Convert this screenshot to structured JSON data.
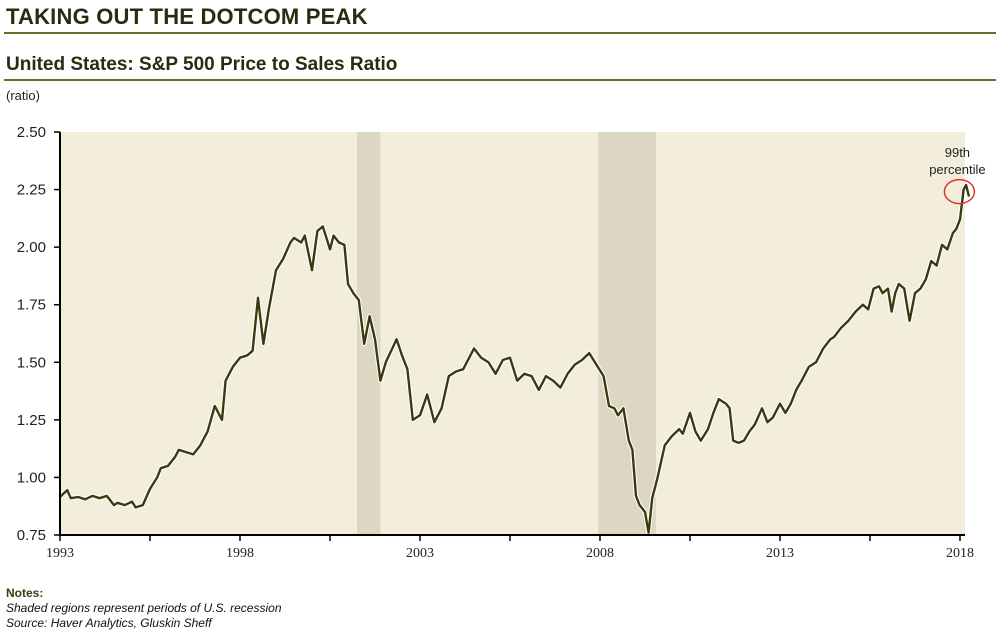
{
  "header": {
    "title": "TAKING OUT THE DOTCOM PEAK",
    "chart_title": "United States: S&P 500 Price to Sales Ratio",
    "unit_label": "(ratio)"
  },
  "notes": {
    "heading": "Notes:",
    "line1": "Shaded regions represent periods of U.S. recession",
    "line2": "Source: Haver Analytics, Gluskin Sheff"
  },
  "colors": {
    "plot_bg": "#f3eedb",
    "recession": "#dcd6c2",
    "line": "#3a3a0c",
    "annotation_circle": "#e03030"
  },
  "chart_data": {
    "type": "line",
    "title": "United States: S&P 500 Price to Sales Ratio",
    "xlabel": "",
    "ylabel": "(ratio)",
    "xlim": [
      1993,
      2018.3
    ],
    "ylim": [
      0.75,
      2.5
    ],
    "grid": false,
    "x_ticks": [
      "1993",
      "1998",
      "2003",
      "2008",
      "2013",
      "2018"
    ],
    "x_tick_values": [
      1993,
      1998,
      2003,
      2008,
      2013,
      2018
    ],
    "x_minor_ticks": [
      1995.5,
      2000.5,
      2005.5,
      2010.5,
      2015.5
    ],
    "y_ticks": [
      "0.75",
      "1.00",
      "1.25",
      "1.50",
      "1.75",
      "2.00",
      "2.25",
      "2.50"
    ],
    "y_tick_values": [
      0.75,
      1.0,
      1.25,
      1.5,
      1.75,
      2.0,
      2.25,
      2.5
    ],
    "recessions": [
      [
        2001.25,
        2001.9
      ],
      [
        2007.95,
        2009.55
      ]
    ],
    "annotation": {
      "text_line1": "99th",
      "text_line2": "percentile",
      "x": 2018.15,
      "y": 2.25
    },
    "series": [
      {
        "name": "S&P 500 Price to Sales Ratio",
        "x": [
          1993.0,
          1993.1,
          1993.2,
          1993.3,
          1993.5,
          1993.7,
          1993.9,
          1994.1,
          1994.3,
          1994.5,
          1994.6,
          1994.8,
          1995.0,
          1995.1,
          1995.3,
          1995.5,
          1995.7,
          1995.8,
          1996.0,
          1996.2,
          1996.3,
          1996.5,
          1996.7,
          1996.9,
          1997.1,
          1997.3,
          1997.5,
          1997.6,
          1997.8,
          1998.0,
          1998.2,
          1998.35,
          1998.5,
          1998.65,
          1998.8,
          1999.0,
          1999.2,
          1999.4,
          1999.5,
          1999.7,
          1999.8,
          2000.0,
          2000.15,
          2000.3,
          2000.5,
          2000.6,
          2000.75,
          2000.9,
          2001.0,
          2001.15,
          2001.3,
          2001.45,
          2001.6,
          2001.75,
          2001.9,
          2002.05,
          2002.2,
          2002.35,
          2002.5,
          2002.65,
          2002.8,
          2003.0,
          2003.2,
          2003.4,
          2003.6,
          2003.8,
          2004.0,
          2004.2,
          2004.5,
          2004.7,
          2004.9,
          2005.1,
          2005.3,
          2005.5,
          2005.7,
          2005.9,
          2006.1,
          2006.3,
          2006.5,
          2006.7,
          2006.9,
          2007.1,
          2007.3,
          2007.5,
          2007.7,
          2007.9,
          2008.1,
          2008.25,
          2008.4,
          2008.5,
          2008.65,
          2008.8,
          2008.9,
          2009.0,
          2009.1,
          2009.25,
          2009.35,
          2009.45,
          2009.6,
          2009.8,
          2010.0,
          2010.2,
          2010.3,
          2010.5,
          2010.65,
          2010.8,
          2011.0,
          2011.15,
          2011.3,
          2011.5,
          2011.6,
          2011.7,
          2011.85,
          2012.0,
          2012.15,
          2012.3,
          2012.5,
          2012.65,
          2012.8,
          2013.0,
          2013.15,
          2013.3,
          2013.45,
          2013.6,
          2013.8,
          2014.0,
          2014.2,
          2014.4,
          2014.5,
          2014.7,
          2014.9,
          2015.1,
          2015.3,
          2015.45,
          2015.6,
          2015.75,
          2015.85,
          2016.0,
          2016.1,
          2016.2,
          2016.3,
          2016.45,
          2016.6,
          2016.75,
          2016.9,
          2017.05,
          2017.2,
          2017.35,
          2017.5,
          2017.65,
          2017.8,
          2017.9,
          2018.0,
          2018.1,
          2018.17,
          2018.25
        ],
        "values": [
          0.915,
          0.93,
          0.945,
          0.91,
          0.915,
          0.905,
          0.92,
          0.91,
          0.92,
          0.88,
          0.89,
          0.88,
          0.895,
          0.87,
          0.88,
          0.95,
          1.0,
          1.04,
          1.05,
          1.09,
          1.12,
          1.11,
          1.1,
          1.14,
          1.2,
          1.31,
          1.25,
          1.42,
          1.48,
          1.52,
          1.53,
          1.55,
          1.78,
          1.58,
          1.73,
          1.9,
          1.95,
          2.02,
          2.04,
          2.02,
          2.05,
          1.9,
          2.07,
          2.09,
          1.99,
          2.05,
          2.02,
          2.01,
          1.84,
          1.8,
          1.77,
          1.58,
          1.7,
          1.6,
          1.42,
          1.5,
          1.55,
          1.6,
          1.53,
          1.47,
          1.25,
          1.27,
          1.36,
          1.24,
          1.3,
          1.44,
          1.46,
          1.47,
          1.56,
          1.52,
          1.5,
          1.45,
          1.51,
          1.52,
          1.42,
          1.45,
          1.44,
          1.38,
          1.44,
          1.42,
          1.39,
          1.45,
          1.49,
          1.51,
          1.54,
          1.49,
          1.44,
          1.31,
          1.3,
          1.27,
          1.3,
          1.16,
          1.12,
          0.92,
          0.88,
          0.85,
          0.76,
          0.91,
          1.0,
          1.14,
          1.18,
          1.21,
          1.19,
          1.28,
          1.2,
          1.16,
          1.21,
          1.28,
          1.34,
          1.32,
          1.3,
          1.16,
          1.15,
          1.16,
          1.2,
          1.23,
          1.3,
          1.24,
          1.26,
          1.32,
          1.28,
          1.32,
          1.38,
          1.42,
          1.48,
          1.5,
          1.56,
          1.6,
          1.61,
          1.65,
          1.68,
          1.72,
          1.75,
          1.73,
          1.82,
          1.83,
          1.8,
          1.82,
          1.72,
          1.8,
          1.84,
          1.82,
          1.68,
          1.8,
          1.82,
          1.86,
          1.94,
          1.92,
          2.01,
          1.99,
          2.06,
          2.08,
          2.12,
          2.25,
          2.27,
          2.22
        ]
      }
    ]
  }
}
